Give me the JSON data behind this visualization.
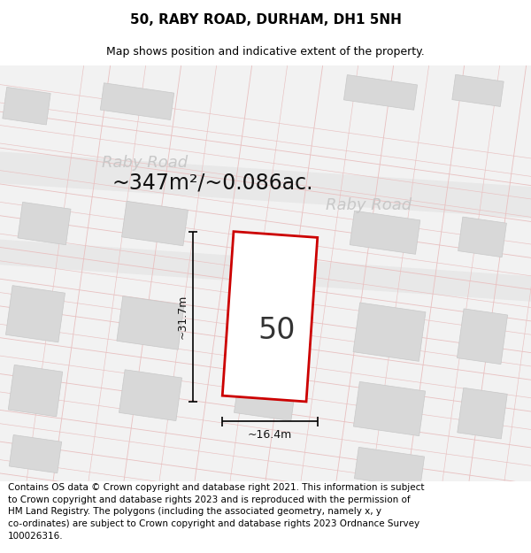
{
  "title": "50, RABY ROAD, DURHAM, DH1 5NH",
  "subtitle": "Map shows position and indicative extent of the property.",
  "footer": "Contains OS data © Crown copyright and database right 2021. This information is subject\nto Crown copyright and database rights 2023 and is reproduced with the permission of\nHM Land Registry. The polygons (including the associated geometry, namely x, y\nco-ordinates) are subject to Crown copyright and database rights 2023 Ordnance Survey\n100026316.",
  "area_label": "~347m²/~0.086ac.",
  "width_label": "~16.4m",
  "height_label": "~31.7m",
  "property_number": "50",
  "road_label1": "Raby Road",
  "road_label2": "Raby Road",
  "map_bg": "#f2f2f2",
  "road_band_color": "#e8e8e8",
  "road_line_color": "#e8c0c0",
  "building_fill": "#d8d8d8",
  "building_edge": "#c8c8c8",
  "property_fill": "#ffffff",
  "property_edge": "#cc0000",
  "road_text_color": "#c8c8c8",
  "title_fontsize": 11,
  "subtitle_fontsize": 9,
  "footer_fontsize": 7.5,
  "area_fontsize": 17,
  "number_fontsize": 24,
  "dim_fontsize": 9,
  "road_fontsize": 13
}
